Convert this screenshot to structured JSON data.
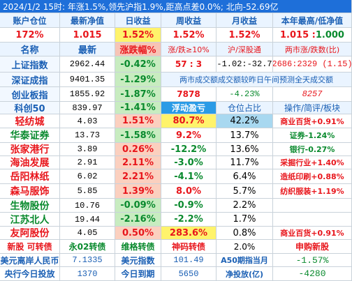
{
  "header": {
    "date": "2024/1/2",
    "summary": "15时: 年涨1.5%,领先沪指1.9%,距高点差0.0%; 北向-52.69亿"
  },
  "account": {
    "labels": [
      "账户仓位",
      "最新净值",
      "日收益",
      "周收益",
      "月收益",
      "本年最高/低净值"
    ],
    "values": [
      "172%",
      "1.015",
      "1.52%",
      "1.52%",
      "1.52%",
      "1.015 : 1.000"
    ]
  },
  "index_header": [
    "名称",
    "最新",
    "涨跌幅%",
    "涨/跌≥10%",
    "沪/深股通",
    "两市涨/跌数(比)"
  ],
  "indices": [
    {
      "name": "上证指数",
      "price": "2962.44",
      "change": "-0.42%",
      "c4": "57 : 3",
      "c5": "-1.02:-32.7",
      "c6": "2686:2329 (1.15)"
    },
    {
      "name": "深证成指",
      "price": "9401.35",
      "change": "-1.29%",
      "note": "两市成交额成交额较昨日午间预测全天成交额"
    },
    {
      "name": "创业板指",
      "price": "1855.92",
      "change": "-1.87%",
      "c4": "7878",
      "c5": "-4.23%",
      "c6": "8257"
    },
    {
      "name": "科创50",
      "price": "839.97",
      "change": "-1.41%",
      "c4": "浮动盈亏",
      "c5": "仓位占比",
      "c6": "操作/简评/板块"
    }
  ],
  "holdings": [
    {
      "name": "轻纺城",
      "price": "4.03",
      "change": "1.51%",
      "pnl": "80.7%",
      "weight": "42.2%",
      "note": "商业百货+0.91%"
    },
    {
      "name": "华泰证券",
      "price": "13.73",
      "change": "-1.58%",
      "pnl": "9.2%",
      "weight": "13.7%",
      "note": "证券-1.24%"
    },
    {
      "name": "张家港行",
      "price": "3.89",
      "change": "0.26%",
      "pnl": "-12.2%",
      "weight": "13.6%",
      "note": "银行-0.27%"
    },
    {
      "name": "海油发展",
      "price": "2.91",
      "change": "2.11%",
      "pnl": "-3.0%",
      "weight": "11.7%",
      "note": "采掘行业+1.40%"
    },
    {
      "name": "岳阳林纸",
      "price": "6.02",
      "change": "2.21%",
      "pnl": "-4.1%",
      "weight": "6.4%",
      "note": "造纸印刷+0.88%"
    },
    {
      "name": "森马服饰",
      "price": "5.85",
      "change": "1.39%",
      "pnl": "8.0%",
      "weight": "5.7%",
      "note": "纺织服装+1.19%"
    },
    {
      "name": "生物股份",
      "price": "10.76",
      "change": "-0.09%",
      "pnl": "-0.9%",
      "weight": "2.2%",
      "note": ""
    },
    {
      "name": "江苏北人",
      "price": "19.44",
      "change": "-2.16%",
      "pnl": "-2.2%",
      "weight": "1.7%",
      "note": ""
    },
    {
      "name": "友阿股份",
      "price": "4.05",
      "change": "0.50%",
      "pnl": "283.6%",
      "weight": "0.8%",
      "note": "商业百货+0.91%"
    }
  ],
  "newstock": {
    "c1": "新股 可转债",
    "c2": "永02转债",
    "c3": "维格转债",
    "c4": "神码转债",
    "c5": "2.0%",
    "c6": "申购新股"
  },
  "footer1": {
    "l1": "美元离岸人民币",
    "v1": "7.1335",
    "l2": "美元指数",
    "v2": "101.49",
    "l3": "A50期指当月",
    "v3": "-1.57%"
  },
  "footer2": {
    "l1": "央行今日投放",
    "v1": "1370",
    "l2": "今日到期",
    "v2": "5650",
    "l3": "净投放(亿)",
    "v3": "-4280"
  },
  "colors": {
    "red": "#e8161c",
    "green": "#0a8a2e",
    "blue": "#1a5fb4",
    "header_bg": "#1e6fd9"
  }
}
